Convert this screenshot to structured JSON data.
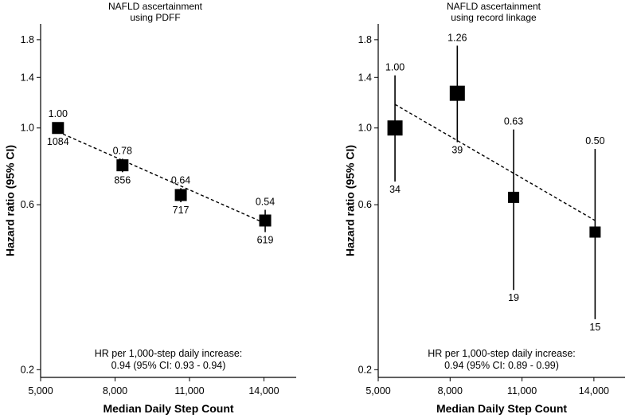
{
  "chart_data": [
    {
      "type": "scatter",
      "title": "NAFLD ascertainment",
      "subtitle": "using PDFF",
      "xlabel": "Median Daily Step Count",
      "ylabel": "Hazard ratio (95% CI)",
      "y_scale": "log",
      "xlim": [
        5000,
        15300
      ],
      "ylim": [
        0.19,
        2.0
      ],
      "x_ticks": [
        5000,
        8000,
        11000,
        14000
      ],
      "x_tick_labels": [
        "5,000",
        "8,000",
        "11,000",
        "14,000"
      ],
      "y_ticks": [
        0.2,
        0.6,
        1.0,
        1.4,
        1.8
      ],
      "y_tick_labels": [
        "0.2",
        "0.6",
        "1.0",
        "1.4",
        "1.8"
      ],
      "points": [
        {
          "x": 5700,
          "hr": 1.0,
          "ci_low": 0.975,
          "ci_high": 1.025,
          "hr_label": "1.00",
          "n_label": "1084"
        },
        {
          "x": 8300,
          "hr": 0.78,
          "ci_low": 0.745,
          "ci_high": 0.815,
          "hr_label": "0.78",
          "n_label": "856"
        },
        {
          "x": 10650,
          "hr": 0.64,
          "ci_low": 0.61,
          "ci_high": 0.67,
          "hr_label": "0.64",
          "n_label": "717"
        },
        {
          "x": 14050,
          "hr": 0.54,
          "ci_low": 0.5,
          "ci_high": 0.58,
          "hr_label": "0.54",
          "n_label": "619"
        }
      ],
      "trend": {
        "x": [
          5700,
          14050
        ],
        "y": [
          0.975,
          0.53
        ]
      },
      "note_line1": "HR per 1,000-step daily increase:",
      "note_line2": "0.94 (95% CI: 0.93 - 0.94)"
    },
    {
      "type": "scatter",
      "title": "NAFLD ascertainment",
      "subtitle": "using record linkage",
      "xlabel": "Median Daily Step Count",
      "ylabel": "Hazard ratio (95% CI)",
      "y_scale": "log",
      "xlim": [
        5000,
        15300
      ],
      "ylim": [
        0.19,
        2.0
      ],
      "x_ticks": [
        5000,
        8000,
        11000,
        14000
      ],
      "x_tick_labels": [
        "5,000",
        "8,000",
        "11,000",
        "14,000"
      ],
      "y_ticks": [
        0.2,
        0.6,
        1.0,
        1.4,
        1.8
      ],
      "y_tick_labels": [
        "0.2",
        "0.6",
        "1.0",
        "1.4",
        "1.8"
      ],
      "points": [
        {
          "x": 5700,
          "hr": 1.0,
          "ci_low": 0.7,
          "ci_high": 1.42,
          "hr_label": "1.00",
          "n_label": "34"
        },
        {
          "x": 8300,
          "hr": 1.26,
          "ci_low": 0.91,
          "ci_high": 1.73,
          "hr_label": "1.26",
          "n_label": "39"
        },
        {
          "x": 10650,
          "hr": 0.63,
          "ci_low": 0.34,
          "ci_high": 0.99,
          "hr_label": "0.63",
          "n_label": "19"
        },
        {
          "x": 14050,
          "hr": 0.5,
          "ci_low": 0.28,
          "ci_high": 0.87,
          "hr_label": "0.50",
          "n_label": "15"
        }
      ],
      "trend": {
        "x": [
          5700,
          14050
        ],
        "y": [
          1.17,
          0.54
        ]
      },
      "note_line1": "HR per 1,000-step daily increase:",
      "note_line2": "0.94 (95% CI: 0.89 - 0.99)"
    }
  ]
}
